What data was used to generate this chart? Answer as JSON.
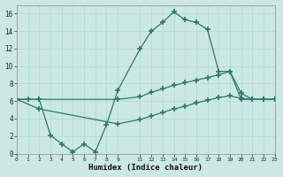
{
  "xlabel": "Humidex (Indice chaleur)",
  "background_color": "#cce8e4",
  "grid_color": "#b0d8d2",
  "line_color": "#2a7a6a",
  "xlim": [
    0,
    23
  ],
  "ylim": [
    0,
    17
  ],
  "xticks": [
    0,
    1,
    2,
    3,
    4,
    5,
    6,
    7,
    8,
    9,
    11,
    12,
    13,
    14,
    15,
    16,
    17,
    18,
    19,
    20,
    21,
    22,
    23
  ],
  "yticks": [
    0,
    2,
    4,
    6,
    8,
    10,
    12,
    14,
    16
  ],
  "line1_x": [
    0,
    1,
    2,
    3,
    4,
    5,
    6,
    7,
    8,
    9,
    11,
    12,
    13,
    14,
    15,
    16,
    17,
    18,
    19,
    20,
    21,
    22,
    23
  ],
  "line1_y": [
    6.2,
    6.2,
    6.2,
    2.1,
    1.1,
    0.2,
    1.1,
    0.2,
    3.3,
    7.2,
    12.0,
    14.0,
    15.0,
    16.2,
    15.3,
    15.0,
    14.2,
    9.4,
    9.4,
    6.2,
    6.2,
    6.2,
    6.2
  ],
  "line2_x": [
    0,
    2,
    9,
    11,
    12,
    13,
    14,
    15,
    16,
    17,
    18,
    19,
    20,
    21,
    22,
    23
  ],
  "line2_y": [
    6.2,
    6.2,
    6.2,
    6.5,
    7.0,
    7.4,
    7.8,
    8.1,
    8.4,
    8.7,
    9.0,
    9.4,
    6.9,
    6.2,
    6.2,
    6.2
  ],
  "line3_x": [
    0,
    2,
    9,
    11,
    12,
    13,
    14,
    15,
    16,
    17,
    18,
    19,
    20,
    21,
    22,
    23
  ],
  "line3_y": [
    6.2,
    5.1,
    3.4,
    3.9,
    4.3,
    4.7,
    5.1,
    5.4,
    5.8,
    6.1,
    6.4,
    6.6,
    6.3,
    6.2,
    6.2,
    6.2
  ]
}
